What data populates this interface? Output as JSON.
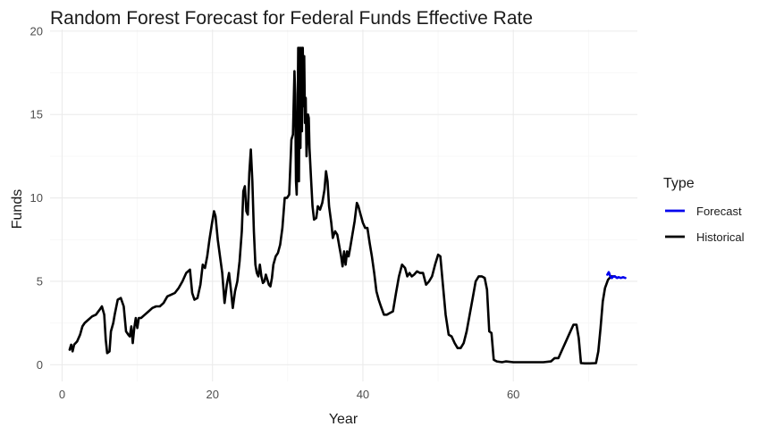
{
  "chart_data": {
    "type": "line",
    "title": "Random Forest Forecast for Federal Funds Effective Rate",
    "xlabel": "Year",
    "ylabel": "Funds",
    "xlim": [
      -1.6,
      76.5
    ],
    "ylim": [
      -1.0,
      20.1
    ],
    "x_ticks": [
      0,
      20,
      40,
      60
    ],
    "y_ticks": [
      0,
      5,
      10,
      15,
      20
    ],
    "grid": true,
    "legend": {
      "title": "Type",
      "position": "right",
      "entries": [
        {
          "label": "Forecast",
          "color": "#0000ee"
        },
        {
          "label": "Historical",
          "color": "#000000"
        }
      ]
    },
    "series": [
      {
        "name": "Historical",
        "color": "#000000",
        "points": [
          [
            1.0,
            0.9
          ],
          [
            1.2,
            1.2
          ],
          [
            1.4,
            0.8
          ],
          [
            1.6,
            1.2
          ],
          [
            2.0,
            1.4
          ],
          [
            2.4,
            1.8
          ],
          [
            2.7,
            2.3
          ],
          [
            3.0,
            2.5
          ],
          [
            3.5,
            2.7
          ],
          [
            4.0,
            2.9
          ],
          [
            4.5,
            3.0
          ],
          [
            5.0,
            3.3
          ],
          [
            5.3,
            3.5
          ],
          [
            5.6,
            3.0
          ],
          [
            5.8,
            1.5
          ],
          [
            6.0,
            0.7
          ],
          [
            6.3,
            0.8
          ],
          [
            6.5,
            2.0
          ],
          [
            6.8,
            2.5
          ],
          [
            7.0,
            3.0
          ],
          [
            7.4,
            3.9
          ],
          [
            7.8,
            4.0
          ],
          [
            8.2,
            3.5
          ],
          [
            8.5,
            2.0
          ],
          [
            8.8,
            1.8
          ],
          [
            9.0,
            1.7
          ],
          [
            9.2,
            2.3
          ],
          [
            9.4,
            1.3
          ],
          [
            9.6,
            2.2
          ],
          [
            9.8,
            2.8
          ],
          [
            10.0,
            2.2
          ],
          [
            10.2,
            2.8
          ],
          [
            10.5,
            2.8
          ],
          [
            11.0,
            3.0
          ],
          [
            11.5,
            3.2
          ],
          [
            12.0,
            3.4
          ],
          [
            12.5,
            3.5
          ],
          [
            13.0,
            3.5
          ],
          [
            13.5,
            3.7
          ],
          [
            14.0,
            4.1
          ],
          [
            14.5,
            4.2
          ],
          [
            15.0,
            4.3
          ],
          [
            15.5,
            4.6
          ],
          [
            16.0,
            5.0
          ],
          [
            16.5,
            5.5
          ],
          [
            17.0,
            5.7
          ],
          [
            17.3,
            4.3
          ],
          [
            17.6,
            3.9
          ],
          [
            18.0,
            4.0
          ],
          [
            18.4,
            4.8
          ],
          [
            18.7,
            6.0
          ],
          [
            19.0,
            5.8
          ],
          [
            19.3,
            6.5
          ],
          [
            19.6,
            7.5
          ],
          [
            19.9,
            8.4
          ],
          [
            20.2,
            9.2
          ],
          [
            20.4,
            8.9
          ],
          [
            20.7,
            7.5
          ],
          [
            21.0,
            6.5
          ],
          [
            21.3,
            5.5
          ],
          [
            21.6,
            3.7
          ],
          [
            21.9,
            4.8
          ],
          [
            22.2,
            5.5
          ],
          [
            22.5,
            4.3
          ],
          [
            22.7,
            3.4
          ],
          [
            23.0,
            4.4
          ],
          [
            23.3,
            5.0
          ],
          [
            23.6,
            6.2
          ],
          [
            23.9,
            8.0
          ],
          [
            24.1,
            10.4
          ],
          [
            24.3,
            10.7
          ],
          [
            24.5,
            9.2
          ],
          [
            24.7,
            9.0
          ],
          [
            24.9,
            11.5
          ],
          [
            25.1,
            12.9
          ],
          [
            25.3,
            11.0
          ],
          [
            25.5,
            8.0
          ],
          [
            25.7,
            6.0
          ],
          [
            25.9,
            5.5
          ],
          [
            26.1,
            5.3
          ],
          [
            26.3,
            6.0
          ],
          [
            26.5,
            5.3
          ],
          [
            26.7,
            4.9
          ],
          [
            26.9,
            5.0
          ],
          [
            27.1,
            5.4
          ],
          [
            27.3,
            5.1
          ],
          [
            27.5,
            4.8
          ],
          [
            27.7,
            4.7
          ],
          [
            27.9,
            5.2
          ],
          [
            28.1,
            6.0
          ],
          [
            28.4,
            6.5
          ],
          [
            28.7,
            6.7
          ],
          [
            29.0,
            7.2
          ],
          [
            29.3,
            8.2
          ],
          [
            29.6,
            10.0
          ],
          [
            29.9,
            10.0
          ],
          [
            30.2,
            10.2
          ],
          [
            30.5,
            13.5
          ],
          [
            30.7,
            13.8
          ],
          [
            30.9,
            17.6
          ],
          [
            31.0,
            16.2
          ],
          [
            31.1,
            11.0
          ],
          [
            31.2,
            10.2
          ],
          [
            31.3,
            14.0
          ],
          [
            31.4,
            19.0
          ],
          [
            31.5,
            11.0
          ],
          [
            31.6,
            19.0
          ],
          [
            31.7,
            13.0
          ],
          [
            31.8,
            19.0
          ],
          [
            31.9,
            14.0
          ],
          [
            32.0,
            19.0
          ],
          [
            32.1,
            15.5
          ],
          [
            32.2,
            18.5
          ],
          [
            32.3,
            14.5
          ],
          [
            32.4,
            16.0
          ],
          [
            32.5,
            12.5
          ],
          [
            32.6,
            13.5
          ],
          [
            32.7,
            15.0
          ],
          [
            32.8,
            14.8
          ],
          [
            32.9,
            13.0
          ],
          [
            33.1,
            11.2
          ],
          [
            33.3,
            9.5
          ],
          [
            33.5,
            8.7
          ],
          [
            33.8,
            8.8
          ],
          [
            34.0,
            9.5
          ],
          [
            34.3,
            9.3
          ],
          [
            34.6,
            9.7
          ],
          [
            34.9,
            10.5
          ],
          [
            35.1,
            11.6
          ],
          [
            35.3,
            11.0
          ],
          [
            35.5,
            9.5
          ],
          [
            35.8,
            8.5
          ],
          [
            36.0,
            7.6
          ],
          [
            36.3,
            8.0
          ],
          [
            36.6,
            7.8
          ],
          [
            36.9,
            7.0
          ],
          [
            37.1,
            6.5
          ],
          [
            37.3,
            5.9
          ],
          [
            37.5,
            6.8
          ],
          [
            37.7,
            6.0
          ],
          [
            37.9,
            6.8
          ],
          [
            38.1,
            6.5
          ],
          [
            38.3,
            7.0
          ],
          [
            38.6,
            7.8
          ],
          [
            38.9,
            8.6
          ],
          [
            39.2,
            9.7
          ],
          [
            39.4,
            9.5
          ],
          [
            39.7,
            9.0
          ],
          [
            40.0,
            8.5
          ],
          [
            40.3,
            8.2
          ],
          [
            40.6,
            8.2
          ],
          [
            40.9,
            7.3
          ],
          [
            41.2,
            6.5
          ],
          [
            41.5,
            5.5
          ],
          [
            41.8,
            4.4
          ],
          [
            42.1,
            3.9
          ],
          [
            42.4,
            3.5
          ],
          [
            42.8,
            3.0
          ],
          [
            43.2,
            3.0
          ],
          [
            43.6,
            3.1
          ],
          [
            44.0,
            3.2
          ],
          [
            44.4,
            4.3
          ],
          [
            44.8,
            5.3
          ],
          [
            45.2,
            6.0
          ],
          [
            45.6,
            5.8
          ],
          [
            45.9,
            5.3
          ],
          [
            46.2,
            5.5
          ],
          [
            46.5,
            5.3
          ],
          [
            46.8,
            5.4
          ],
          [
            47.2,
            5.6
          ],
          [
            47.6,
            5.5
          ],
          [
            48.0,
            5.5
          ],
          [
            48.4,
            4.8
          ],
          [
            48.8,
            5.0
          ],
          [
            49.2,
            5.3
          ],
          [
            49.6,
            6.0
          ],
          [
            50.0,
            6.6
          ],
          [
            50.3,
            6.5
          ],
          [
            50.6,
            5.0
          ],
          [
            51.0,
            3.0
          ],
          [
            51.4,
            1.8
          ],
          [
            51.8,
            1.7
          ],
          [
            52.2,
            1.3
          ],
          [
            52.6,
            1.0
          ],
          [
            53.0,
            1.0
          ],
          [
            53.4,
            1.3
          ],
          [
            53.8,
            2.0
          ],
          [
            54.2,
            3.0
          ],
          [
            54.6,
            4.0
          ],
          [
            55.0,
            5.0
          ],
          [
            55.4,
            5.3
          ],
          [
            55.8,
            5.3
          ],
          [
            56.2,
            5.2
          ],
          [
            56.5,
            4.5
          ],
          [
            56.8,
            2.0
          ],
          [
            57.1,
            1.9
          ],
          [
            57.4,
            0.3
          ],
          [
            57.8,
            0.2
          ],
          [
            58.5,
            0.15
          ],
          [
            59.0,
            0.2
          ],
          [
            60.0,
            0.15
          ],
          [
            61.0,
            0.15
          ],
          [
            62.0,
            0.15
          ],
          [
            63.0,
            0.15
          ],
          [
            64.0,
            0.15
          ],
          [
            65.0,
            0.2
          ],
          [
            65.5,
            0.4
          ],
          [
            66.0,
            0.4
          ],
          [
            66.5,
            0.9
          ],
          [
            67.0,
            1.4
          ],
          [
            67.5,
            1.9
          ],
          [
            68.0,
            2.4
          ],
          [
            68.4,
            2.4
          ],
          [
            68.7,
            1.6
          ],
          [
            69.0,
            0.1
          ],
          [
            69.5,
            0.08
          ],
          [
            70.2,
            0.08
          ],
          [
            71.0,
            0.1
          ],
          [
            71.3,
            0.8
          ],
          [
            71.6,
            2.2
          ],
          [
            71.9,
            3.8
          ],
          [
            72.2,
            4.6
          ],
          [
            72.6,
            5.1
          ],
          [
            73.0,
            5.3
          ],
          [
            73.5,
            5.3
          ]
        ]
      },
      {
        "name": "Forecast",
        "color": "#0000ee",
        "points": [
          [
            72.5,
            5.4
          ],
          [
            72.7,
            5.55
          ],
          [
            72.9,
            5.3
          ],
          [
            73.1,
            5.2
          ],
          [
            73.3,
            5.3
          ],
          [
            73.5,
            5.3
          ],
          [
            73.8,
            5.2
          ],
          [
            74.0,
            5.25
          ],
          [
            74.3,
            5.2
          ],
          [
            74.6,
            5.25
          ],
          [
            74.9,
            5.2
          ]
        ]
      }
    ]
  }
}
